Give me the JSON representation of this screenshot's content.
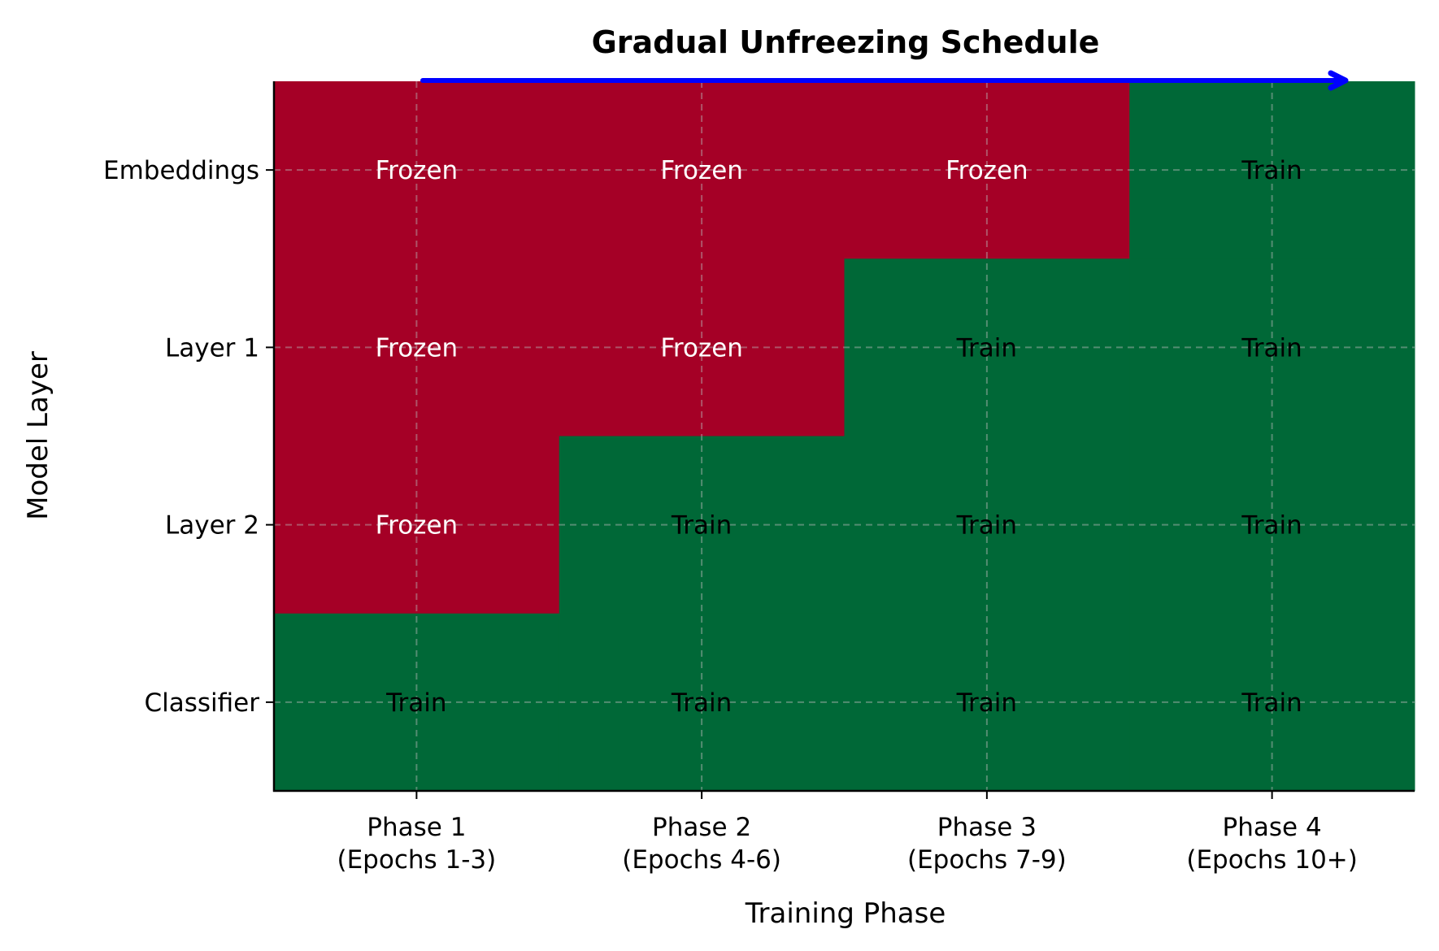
{
  "chart_data": {
    "type": "heatmap",
    "title": "Gradual Unfreezing Schedule",
    "xlabel": "Training Phase",
    "ylabel": "Model Layer",
    "x_categories": [
      [
        "Phase 1",
        "(Epochs 1-3)"
      ],
      [
        "Phase 2",
        "(Epochs 4-6)"
      ],
      [
        "Phase 3",
        "(Epochs 7-9)"
      ],
      [
        "Phase 4",
        "(Epochs 10+)"
      ]
    ],
    "y_categories": [
      "Embeddings",
      "Layer 1",
      "Layer 2",
      "Classifier"
    ],
    "values": [
      [
        "Frozen",
        "Frozen",
        "Frozen",
        "Train"
      ],
      [
        "Frozen",
        "Frozen",
        "Train",
        "Train"
      ],
      [
        "Frozen",
        "Train",
        "Train",
        "Train"
      ],
      [
        "Train",
        "Train",
        "Train",
        "Train"
      ]
    ],
    "colors": {
      "Frozen": "#a50026",
      "Train": "#006837",
      "arrow": "#0000ff",
      "grid": "#bbbbbb"
    },
    "text_colors": {
      "Frozen": "#ffffff",
      "Train": "#000000"
    },
    "grid": true,
    "grid_style": "dashed",
    "annotation": "arrow pointing right along the top edge"
  }
}
